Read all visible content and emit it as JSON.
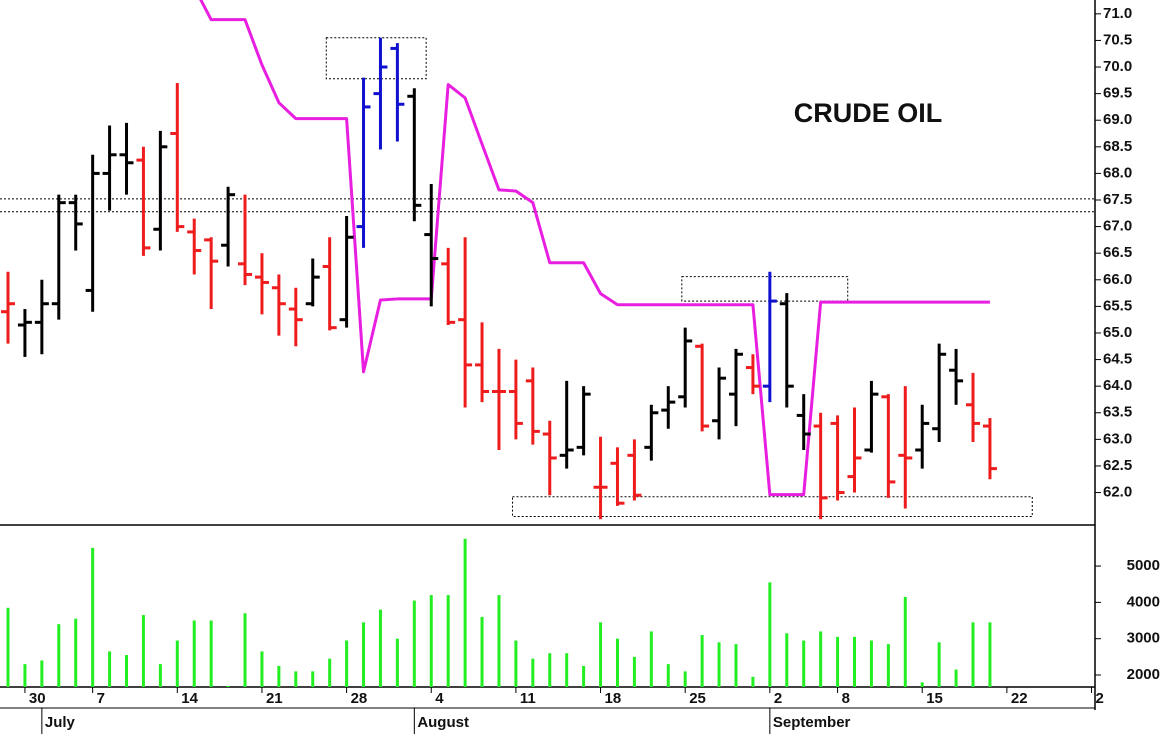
{
  "chart_data": {
    "type": "ohlc",
    "title": "CRUDE OIL",
    "categories": [
      null,
      "30",
      null,
      null,
      null,
      "7",
      null,
      null,
      null,
      null,
      "14",
      null,
      null,
      null,
      null,
      "21",
      null,
      null,
      null,
      null,
      "28",
      null,
      null,
      null,
      null,
      "4",
      null,
      null,
      null,
      null,
      "11",
      null,
      null,
      null,
      null,
      "18",
      null,
      null,
      null,
      null,
      "25",
      null,
      null,
      null,
      null,
      "2",
      null,
      null,
      null,
      "8",
      null,
      null,
      null,
      null,
      "15",
      null,
      null,
      null,
      null,
      "22",
      null,
      null,
      null,
      null,
      "2"
    ],
    "months": [
      {
        "label": "July",
        "start": 2
      },
      {
        "label": "August",
        "start": 24
      },
      {
        "label": "September",
        "start": 45
      }
    ],
    "open": [
      65.4,
      65.15,
      65.2,
      65.55,
      67.45,
      65.8,
      68.0,
      68.35,
      68.25,
      66.95,
      68.75,
      66.9,
      66.75,
      66.65,
      66.3,
      66.05,
      65.85,
      65.45,
      65.55,
      66.25,
      65.25,
      67.0,
      69.5,
      70.35,
      69.45,
      66.85,
      66.3,
      65.25,
      64.4,
      63.9,
      63.9,
      64.1,
      63.1,
      62.7,
      62.85,
      62.1,
      62.55,
      62.7,
      62.85,
      63.55,
      63.8,
      64.75,
      63.35,
      63.85,
      64.35,
      64.0,
      65.55,
      63.45,
      63.25,
      63.3,
      62.3,
      62.8,
      63.8,
      62.7,
      62.8,
      63.2,
      64.3,
      63.65,
      63.25,
      null,
      null,
      null,
      null,
      null,
      null
    ],
    "high": [
      66.15,
      65.45,
      66.0,
      67.6,
      67.6,
      68.35,
      68.9,
      68.95,
      68.5,
      68.8,
      69.7,
      67.15,
      66.8,
      67.75,
      67.6,
      66.5,
      66.1,
      65.85,
      66.4,
      66.8,
      67.2,
      69.8,
      70.55,
      70.45,
      69.6,
      67.8,
      66.6,
      66.8,
      65.2,
      64.7,
      64.5,
      64.35,
      63.35,
      64.1,
      64.0,
      63.05,
      62.85,
      63.0,
      63.65,
      64.0,
      65.1,
      64.8,
      64.35,
      64.7,
      64.6,
      66.15,
      65.75,
      63.85,
      63.5,
      63.45,
      63.6,
      64.1,
      63.85,
      64.0,
      63.65,
      64.8,
      64.7,
      64.25,
      63.4,
      null,
      null,
      null,
      null,
      null,
      null
    ],
    "low": [
      64.8,
      64.55,
      64.6,
      65.25,
      66.55,
      65.4,
      67.3,
      67.6,
      66.45,
      66.55,
      66.9,
      66.1,
      65.45,
      66.25,
      65.9,
      65.35,
      64.95,
      64.75,
      65.5,
      65.05,
      65.1,
      66.6,
      68.45,
      68.6,
      67.1,
      65.5,
      65.15,
      63.6,
      63.7,
      62.8,
      63.0,
      62.9,
      61.95,
      62.45,
      62.7,
      61.5,
      61.75,
      61.85,
      62.6,
      63.2,
      63.6,
      63.15,
      63.0,
      63.25,
      63.85,
      63.7,
      63.6,
      62.8,
      61.5,
      61.85,
      62.0,
      62.75,
      61.9,
      61.7,
      62.45,
      62.95,
      63.65,
      62.95,
      62.25,
      null,
      null,
      null,
      null,
      null,
      null
    ],
    "close": [
      65.55,
      65.2,
      65.55,
      67.45,
      67.05,
      68.0,
      68.35,
      68.2,
      66.6,
      68.5,
      67.0,
      66.55,
      66.35,
      67.6,
      66.1,
      65.95,
      65.55,
      65.25,
      66.05,
      65.1,
      66.8,
      69.25,
      70.0,
      69.3,
      67.4,
      66.4,
      65.2,
      64.4,
      63.9,
      63.9,
      63.3,
      63.15,
      62.65,
      62.8,
      63.85,
      62.1,
      61.8,
      61.95,
      63.5,
      63.7,
      64.85,
      63.25,
      64.15,
      64.6,
      64.0,
      65.6,
      64.0,
      63.1,
      61.9,
      62.0,
      62.65,
      63.85,
      62.2,
      62.65,
      63.3,
      64.6,
      64.1,
      63.3,
      62.45,
      null,
      null,
      null,
      null,
      null,
      null
    ],
    "colors": [
      "#ee1c1c",
      "#000000",
      "#000000",
      "#000000",
      "#000000",
      "#000000",
      "#000000",
      "#000000",
      "#ee1c1c",
      "#000000",
      "#ee1c1c",
      "#ee1c1c",
      "#ee1c1c",
      "#000000",
      "#ee1c1c",
      "#ee1c1c",
      "#ee1c1c",
      "#ee1c1c",
      "#000000",
      "#ee1c1c",
      "#000000",
      "#1010d0",
      "#1010d0",
      "#1010d0",
      "#000000",
      "#000000",
      "#ee1c1c",
      "#ee1c1c",
      "#ee1c1c",
      "#ee1c1c",
      "#ee1c1c",
      "#ee1c1c",
      "#ee1c1c",
      "#000000",
      "#000000",
      "#ee1c1c",
      "#ee1c1c",
      "#ee1c1c",
      "#000000",
      "#000000",
      "#000000",
      "#ee1c1c",
      "#000000",
      "#000000",
      "#ee1c1c",
      "#1010d0",
      "#000000",
      "#000000",
      "#ee1c1c",
      "#ee1c1c",
      "#ee1c1c",
      "#000000",
      "#ee1c1c",
      "#ee1c1c",
      "#000000",
      "#000000",
      "#000000",
      "#ee1c1c",
      "#ee1c1c",
      null,
      null,
      null,
      null,
      null,
      null
    ],
    "line": {
      "color": "#e81ee0",
      "values": [
        null,
        null,
        null,
        null,
        null,
        null,
        null,
        null,
        null,
        null,
        null,
        71.5,
        70.89,
        70.89,
        70.89,
        70.04,
        69.33,
        69.03,
        69.03,
        69.03,
        69.03,
        64.27,
        65.62,
        65.64,
        65.64,
        65.64,
        69.67,
        69.42,
        68.55,
        67.69,
        67.67,
        67.45,
        66.32,
        66.32,
        66.32,
        65.74,
        65.53,
        65.53,
        65.53,
        65.53,
        65.53,
        65.53,
        65.53,
        65.53,
        65.53,
        61.96,
        61.96,
        61.96,
        65.58,
        65.58,
        65.58,
        65.58,
        65.58,
        65.58,
        65.58,
        65.58,
        65.58,
        65.58,
        65.58,
        null,
        null,
        null,
        null,
        null,
        null
      ]
    },
    "reference_lines": [
      67.52,
      67.28
    ],
    "zones": [
      {
        "x": [
          18.8,
          24.7
        ],
        "y": [
          69.78,
          70.55
        ]
      },
      {
        "x": [
          39.8,
          49.6
        ],
        "y": [
          65.6,
          66.06
        ]
      },
      {
        "x": [
          29.8,
          60.5
        ],
        "y": [
          61.55,
          61.92
        ]
      }
    ],
    "ylim": [
      61.39,
      71.26
    ],
    "yticks": [
      {
        "value": 62,
        "label": "62.0"
      },
      62.5,
      {
        "value": 63,
        "label": "63.0"
      },
      63.5,
      {
        "value": 64,
        "label": "64.0"
      },
      64.5,
      {
        "value": 65,
        "label": "65.0"
      },
      65.5,
      {
        "value": 66,
        "label": "66.0"
      },
      66.5,
      {
        "value": 67,
        "label": "67.0"
      },
      67.5,
      {
        "value": 68,
        "label": "68.0"
      },
      68.5,
      {
        "value": 69,
        "label": "69.0"
      },
      69.5,
      {
        "value": 70,
        "label": "70.0"
      },
      70.5,
      {
        "value": 71,
        "label": "71.0"
      }
    ],
    "volume": {
      "type": "bar",
      "color": "#22ee22",
      "values": [
        3850,
        2300,
        2400,
        3400,
        3550,
        5500,
        2650,
        2550,
        3650,
        2300,
        2950,
        3500,
        3500,
        1700,
        3700,
        2650,
        2250,
        2100,
        2100,
        2450,
        2950,
        3450,
        3800,
        3000,
        4050,
        4200,
        4200,
        5750,
        3600,
        4200,
        2950,
        2450,
        2600,
        2600,
        2250,
        3450,
        3000,
        2500,
        3200,
        2300,
        2100,
        3100,
        2900,
        2850,
        1950,
        4550,
        3150,
        2950,
        3200,
        3050,
        3050,
        2950,
        2850,
        4150,
        1800,
        2900,
        2150,
        3450,
        3450,
        null,
        null,
        null,
        null,
        null,
        null
      ],
      "ylim": [
        1670,
        6130
      ],
      "yticks": [
        2000,
        3000,
        4000,
        5000
      ]
    }
  }
}
